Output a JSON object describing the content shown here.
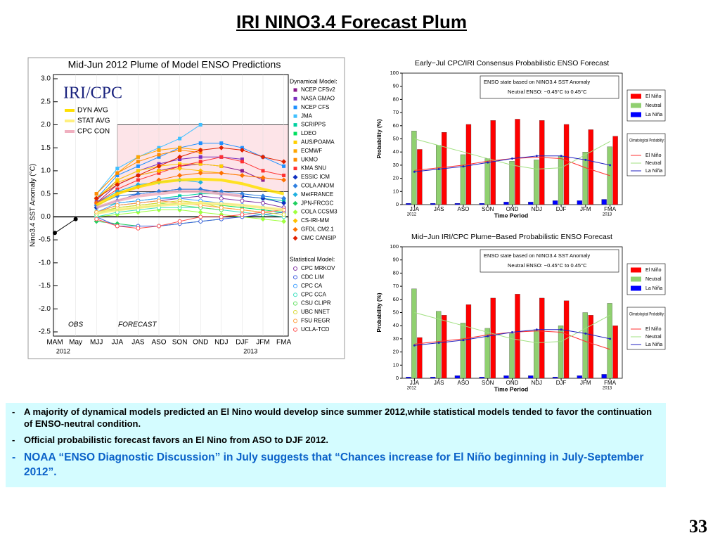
{
  "title": "IRI NINO3.4 Forecast Plum",
  "page_number": "33",
  "bullets": [
    "A majority of dynamical models predicted an El Nino would develop since summer 2012,while statistical models tended to favor the continuation of ENSO-neutral condition.",
    "Official probabilistic forecast favors an El Nino from ASO to DJF 2012.",
    "NOAA “ENSO Diagnostic Discussion” in July suggests that “Chances increase for El Niño beginning in July-September 2012”."
  ],
  "chart_data": [
    {
      "type": "line",
      "title": "Mid-Jun 2012 Plume of Model ENSO Predictions",
      "logo": "IRI/CPC",
      "ylabel": "Nino3.4 SST Anomaly (°C)",
      "categories": [
        "MAM",
        "May",
        "MJJ",
        "JJA",
        "JAS",
        "ASO",
        "SON",
        "OND",
        "NDJ",
        "DJF",
        "JFM",
        "FMA"
      ],
      "year_labels": [
        "2012",
        "2013"
      ],
      "annotations": [
        "FORECAST"
      ],
      "legend_groups": {
        "dynamical": "Dynamical Model:",
        "statistical": "Statistical Model:"
      },
      "ylim": [
        -2.5,
        3.0
      ],
      "yticks": [
        {
          "value": -2.5,
          "label": "-2.5"
        },
        {
          "value": -2,
          "label": "-2.0"
        },
        {
          "value": -1.5,
          "label": "-1.5"
        },
        {
          "value": -1,
          "label": "-1.0"
        },
        {
          "value": -0.5,
          "label": "-0.5"
        },
        {
          "value": 0,
          "label": "0.0"
        },
        {
          "value": 0.5,
          "label": "0.5"
        },
        {
          "value": 1,
          "label": "1.0"
        },
        {
          "value": 1.5,
          "label": "1.5"
        },
        {
          "value": 2,
          "label": "2.0"
        },
        {
          "value": 2.5,
          "label": "2.5"
        },
        {
          "value": 3,
          "label": "3.0"
        }
      ],
      "series": [
        {
          "name": "OBS",
          "group": "obs",
          "color": "#000000",
          "marker": "dot",
          "values": [
            -0.35,
            -0.05,
            null,
            null,
            null,
            null,
            null,
            null,
            null,
            null,
            null,
            null
          ]
        },
        {
          "name": "NCEP CFSv2",
          "group": "dynamical",
          "color": "#8b1a8b",
          "marker": "square",
          "values": [
            null,
            null,
            0.3,
            0.7,
            0.9,
            1.0,
            1.1,
            1.15,
            1.1,
            1.0,
            0.8,
            null
          ]
        },
        {
          "name": "NASA GMAO",
          "group": "dynamical",
          "color": "#7b2fbe",
          "marker": "square",
          "values": [
            null,
            null,
            0.35,
            0.8,
            1.0,
            1.15,
            1.25,
            1.3,
            1.3,
            1.25,
            null,
            null
          ]
        },
        {
          "name": "NCEP CFS",
          "group": "dynamical",
          "color": "#1e90ff",
          "marker": "square",
          "values": [
            null,
            null,
            0.4,
            0.9,
            1.1,
            1.3,
            1.5,
            1.6,
            1.6,
            1.5,
            1.3,
            1.1
          ]
        },
        {
          "name": "JMA",
          "group": "dynamical",
          "color": "#40c0ff",
          "marker": "square",
          "values": [
            null,
            null,
            0.5,
            1.05,
            1.3,
            1.5,
            1.7,
            2.0,
            null,
            null,
            null,
            null
          ]
        },
        {
          "name": "SCRIPPS",
          "group": "dynamical",
          "color": "#00d0a0",
          "marker": "square",
          "values": [
            null,
            null,
            0.2,
            0.3,
            0.35,
            0.4,
            0.45,
            0.5,
            0.5,
            0.45,
            0.4,
            0.35
          ]
        },
        {
          "name": "LDEO",
          "group": "dynamical",
          "color": "#00e060",
          "marker": "square",
          "values": [
            null,
            null,
            0.1,
            0.15,
            0.2,
            0.25,
            0.3,
            0.3,
            0.25,
            0.2,
            0.15,
            0.1
          ]
        },
        {
          "name": "AUS/POAMA",
          "group": "dynamical",
          "color": "#ffd000",
          "marker": "square",
          "values": [
            null,
            null,
            0.4,
            0.8,
            1.0,
            1.1,
            1.15,
            1.15,
            1.1,
            null,
            null,
            null
          ]
        },
        {
          "name": "ECMWF",
          "group": "dynamical",
          "color": "#ffa500",
          "marker": "square",
          "values": [
            null,
            null,
            0.5,
            0.95,
            1.3,
            1.45,
            1.5,
            1.45,
            null,
            null,
            null,
            null
          ]
        },
        {
          "name": "UKMO",
          "group": "dynamical",
          "color": "#ff8c00",
          "marker": "square",
          "values": [
            null,
            null,
            0.5,
            0.95,
            1.2,
            1.35,
            1.45,
            1.4,
            null,
            null,
            null,
            null
          ]
        },
        {
          "name": "KMA SNU",
          "group": "dynamical",
          "color": "#ff3030",
          "marker": "square",
          "values": [
            null,
            null,
            0.3,
            0.6,
            0.8,
            0.95,
            1.1,
            1.2,
            1.3,
            1.2,
            1.0,
            0.9
          ]
        },
        {
          "name": "ESSIC ICM",
          "group": "dynamical",
          "color": "#1030c0",
          "marker": "diamond",
          "values": [
            null,
            null,
            0.2,
            0.35,
            0.5,
            0.55,
            0.6,
            0.6,
            0.5,
            0.45,
            0.4,
            0.3
          ]
        },
        {
          "name": "COLA ANOM",
          "group": "dynamical",
          "color": "#3080e0",
          "marker": "diamond",
          "values": [
            null,
            null,
            0.25,
            0.45,
            0.5,
            0.55,
            0.6,
            0.6,
            0.55,
            0.5,
            0.45,
            0.4
          ]
        },
        {
          "name": "MetFRANCE",
          "group": "dynamical",
          "color": "#20b0e0",
          "marker": "diamond",
          "values": [
            null,
            null,
            0.3,
            0.55,
            0.7,
            0.75,
            0.8,
            0.75,
            null,
            null,
            null,
            null
          ]
        },
        {
          "name": "JPN-FRCGC",
          "group": "dynamical",
          "color": "#20d060",
          "marker": "diamond",
          "values": [
            null,
            null,
            -0.1,
            -0.15,
            -0.2,
            -0.2,
            -0.15,
            -0.1,
            -0.05,
            null,
            null,
            null
          ]
        },
        {
          "name": "COLA CCSM3",
          "group": "dynamical",
          "color": "#a0ff40",
          "marker": "diamond",
          "values": [
            null,
            null,
            0.0,
            0.05,
            0.1,
            0.15,
            0.15,
            0.1,
            0.05,
            0.0,
            -0.05,
            -0.1
          ]
        },
        {
          "name": "CS-IRI-MM",
          "group": "dynamical",
          "color": "#ffc000",
          "marker": "diamond",
          "values": [
            null,
            null,
            0.4,
            0.75,
            0.9,
            1.0,
            1.05,
            1.0,
            0.95,
            0.9,
            0.85,
            null
          ]
        },
        {
          "name": "GFDL CM2.1",
          "group": "dynamical",
          "color": "#ff7000",
          "marker": "diamond",
          "values": [
            null,
            null,
            0.3,
            0.5,
            0.65,
            0.8,
            0.9,
            0.95,
            0.95,
            0.9,
            0.85,
            0.8
          ]
        },
        {
          "name": "CMC CANSIP",
          "group": "dynamical",
          "color": "#e02000",
          "marker": "diamond",
          "values": [
            null,
            null,
            0.4,
            0.7,
            0.9,
            1.1,
            1.3,
            1.45,
            1.5,
            1.45,
            1.3,
            1.2
          ]
        },
        {
          "name": "CPC MRKOV",
          "group": "statistical",
          "color": "#8030a0",
          "marker": "open",
          "values": [
            null,
            null,
            0.1,
            0.25,
            0.3,
            0.35,
            0.4,
            0.45,
            0.4,
            0.35,
            0.3,
            0.2
          ]
        },
        {
          "name": "CDC LIM",
          "group": "statistical",
          "color": "#4060e0",
          "marker": "open",
          "values": [
            null,
            null,
            0.0,
            -0.2,
            -0.2,
            -0.2,
            -0.15,
            -0.1,
            -0.05,
            0.0,
            0.05,
            0.1
          ]
        },
        {
          "name": "CPC CA",
          "group": "statistical",
          "color": "#40a0ff",
          "marker": "open",
          "values": [
            null,
            null,
            0.1,
            0.3,
            0.35,
            0.4,
            0.4,
            0.35,
            0.3,
            0.25,
            0.2,
            0.15
          ]
        },
        {
          "name": "CPC CCA",
          "group": "statistical",
          "color": "#40e0c0",
          "marker": "open",
          "values": [
            null,
            null,
            0.0,
            0.1,
            0.15,
            0.2,
            0.2,
            0.2,
            0.15,
            0.1,
            0.05,
            0.0
          ]
        },
        {
          "name": "CSU CLIPR",
          "group": "statistical",
          "color": "#60e060",
          "marker": "open",
          "values": [
            null,
            null,
            0.05,
            0.2,
            0.25,
            0.3,
            0.25,
            0.2,
            0.15,
            null,
            null,
            null
          ]
        },
        {
          "name": "UBC NNET",
          "group": "statistical",
          "color": "#d8d830",
          "marker": "open",
          "values": [
            null,
            null,
            0.1,
            0.2,
            0.25,
            0.3,
            0.35,
            0.3,
            0.2,
            0.15,
            0.1,
            0.05
          ]
        },
        {
          "name": "FSU REGR",
          "group": "statistical",
          "color": "#ffa040",
          "marker": "open",
          "values": [
            null,
            null,
            0.1,
            0.25,
            0.3,
            0.35,
            0.3,
            0.25,
            0.2,
            0.15,
            0.1,
            null
          ]
        },
        {
          "name": "UCLA-TCD",
          "group": "statistical",
          "color": "#ff5050",
          "marker": "open",
          "values": [
            null,
            null,
            -0.05,
            -0.2,
            -0.25,
            -0.2,
            -0.1,
            0.0,
            0.0,
            0.05,
            0.1,
            0.15
          ]
        },
        {
          "name": "DYN AVG",
          "group": "average",
          "color": "#ffe000",
          "width": 4,
          "values": [
            null,
            null,
            0.25,
            0.5,
            0.65,
            0.75,
            0.8,
            0.82,
            0.8,
            0.72,
            0.6,
            0.5
          ]
        },
        {
          "name": "STAT AVG",
          "group": "average",
          "color": "#fff080",
          "width": 4,
          "values": [
            null,
            null,
            0.08,
            0.15,
            0.2,
            0.25,
            0.28,
            0.3,
            0.28,
            0.25,
            0.2,
            0.15
          ]
        },
        {
          "name": "CPC CON",
          "group": "average",
          "color": "#f0b0c0",
          "width": 4,
          "values": [
            null,
            null,
            0.2,
            0.35,
            0.45,
            0.5,
            0.55,
            0.55,
            0.5,
            0.45,
            null,
            null
          ]
        }
      ]
    },
    {
      "type": "bar",
      "title": "Early−Jul CPC/IRI Consensus Probabilistic ENSO Forecast",
      "ylabel": "Probability (%)",
      "xlabel": "Time Period",
      "year_labels": [
        "2012",
        "2013"
      ],
      "annotations": [
        "ENSO state based on NINO3.4 SST Anomaly",
        "Neutral ENSO: −0.45°C to 0.45°C"
      ],
      "categories": [
        "JJA",
        "JAS",
        "ASO",
        "SON",
        "OND",
        "NDJ",
        "DJF",
        "JFM",
        "FMA"
      ],
      "ylim": [
        0,
        100
      ],
      "yticks": [
        0,
        10,
        20,
        30,
        40,
        50,
        60,
        70,
        80,
        90,
        100
      ],
      "series": [
        {
          "name": "El Niño",
          "color": "#ff0000",
          "values": [
            42,
            55,
            61,
            64,
            65,
            64,
            61,
            57,
            52
          ]
        },
        {
          "name": "Neutral",
          "color": "#90d070",
          "values": [
            56,
            45,
            38,
            35,
            33,
            34,
            37,
            40,
            44
          ]
        },
        {
          "name": "La Niña",
          "color": "#0000ff",
          "values": [
            1,
            1,
            1,
            1,
            2,
            2,
            3,
            3,
            4
          ]
        }
      ],
      "climatology": {
        "title": "Climatological Probability:",
        "series": [
          {
            "name": "El Niño",
            "color": "#ff3030",
            "values": [
              26,
              28,
              30,
              33,
              35,
              36,
              35,
              28,
              22
            ]
          },
          {
            "name": "Neutral",
            "color": "#a0e080",
            "values": [
              50,
              45,
              40,
              35,
              30,
              27,
              28,
              38,
              48
            ]
          },
          {
            "name": "La Niña",
            "color": "#2020c0",
            "values": [
              25,
              27,
              29,
              32,
              35,
              37,
              37,
              34,
              30
            ]
          }
        ]
      }
    },
    {
      "type": "bar",
      "title": "Mid−Jun IRI/CPC Plume−Based Probabilistic ENSO Forecast",
      "ylabel": "Probability (%)",
      "xlabel": "Time Period",
      "year_labels": [
        "2012",
        "2013"
      ],
      "annotations": [
        "ENSO state based on NINO3.4 SST Anomaly",
        "Neutral ENSO: −0.45°C to 0.45°C"
      ],
      "categories": [
        "JJA",
        "JAS",
        "ASO",
        "SON",
        "OND",
        "NDJ",
        "DJF",
        "JFM",
        "FMA"
      ],
      "ylim": [
        0,
        100
      ],
      "yticks": [
        0,
        10,
        20,
        30,
        40,
        50,
        60,
        70,
        80,
        90,
        100
      ],
      "series": [
        {
          "name": "El Niño",
          "color": "#ff0000",
          "values": [
            31,
            48,
            56,
            61,
            64,
            61,
            59,
            48,
            40
          ]
        },
        {
          "name": "Neutral",
          "color": "#90d070",
          "values": [
            68,
            51,
            42,
            38,
            34,
            37,
            40,
            50,
            57
          ]
        },
        {
          "name": "La Niña",
          "color": "#0000ff",
          "values": [
            1,
            1,
            2,
            1,
            2,
            2,
            1,
            2,
            3
          ]
        }
      ],
      "climatology": {
        "title": "Climatological Probability:",
        "series": [
          {
            "name": "El Niño",
            "color": "#ff3030",
            "values": [
              26,
              28,
              30,
              33,
              35,
              36,
              35,
              28,
              22
            ]
          },
          {
            "name": "Neutral",
            "color": "#a0e080",
            "values": [
              50,
              45,
              40,
              35,
              30,
              27,
              28,
              38,
              48
            ]
          },
          {
            "name": "La Niña",
            "color": "#2020c0",
            "values": [
              25,
              27,
              29,
              32,
              35,
              37,
              37,
              34,
              30
            ]
          }
        ]
      }
    }
  ]
}
